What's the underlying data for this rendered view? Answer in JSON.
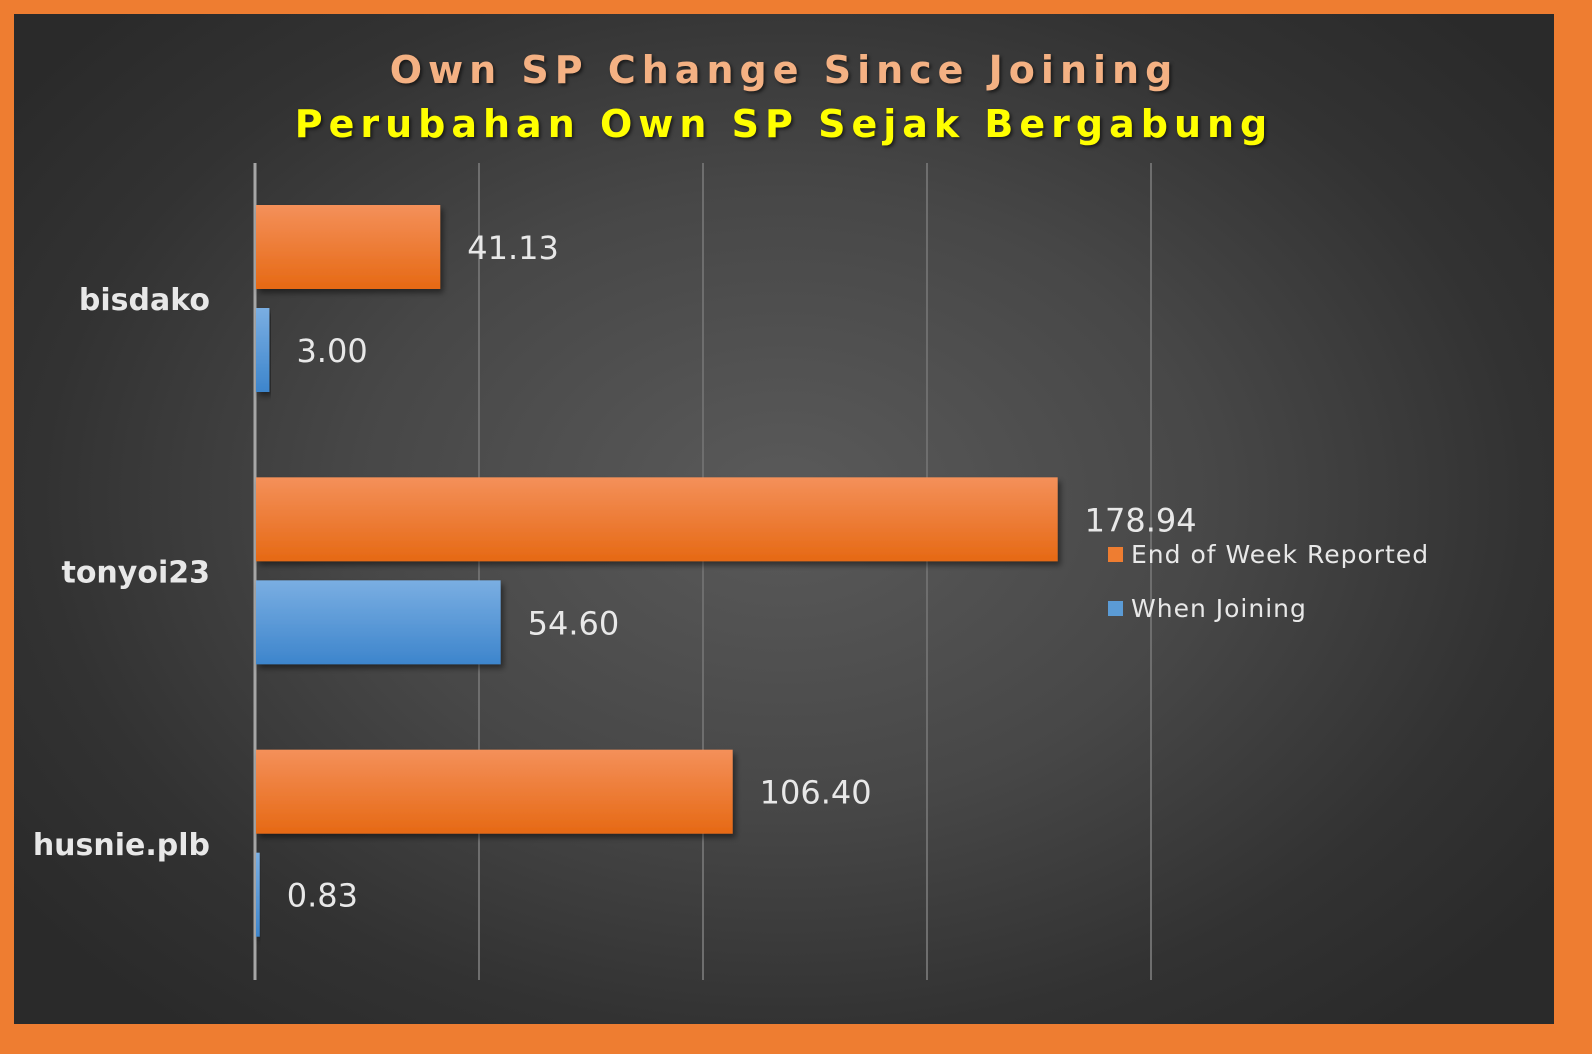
{
  "chart_data": {
    "type": "bar",
    "orientation": "horizontal",
    "title": "Own SP Change Since Joining",
    "subtitle": "Perubahan Own SP Sejak Bergabung",
    "categories": [
      "bisdako",
      "tonyoi23",
      "husnie.plb"
    ],
    "series": [
      {
        "name": "End of Week Reported",
        "color": "#ee7d31",
        "values": [
          41.13,
          178.94,
          106.4
        ],
        "labels": [
          "41.13",
          "178.94",
          "106.40"
        ]
      },
      {
        "name": "When Joining",
        "color": "#5b9bd5",
        "values": [
          3.0,
          54.6,
          0.83
        ],
        "labels": [
          "3.00",
          "54.60",
          "0.83"
        ]
      }
    ],
    "xlim": [
      0,
      200
    ],
    "gridlines": [
      50,
      100,
      150,
      200
    ],
    "x_tick_labels_shown": false,
    "legend_position": "right",
    "data_labels": true,
    "colors": {
      "border": "#ee7d31",
      "title": "#f4b183",
      "subtitle": "#ffff00",
      "category_text": "#e8e8e8",
      "data_label_text": "#e8e8e8",
      "gridline": "#6e6e6e",
      "axis": "#a6a6a6"
    }
  }
}
